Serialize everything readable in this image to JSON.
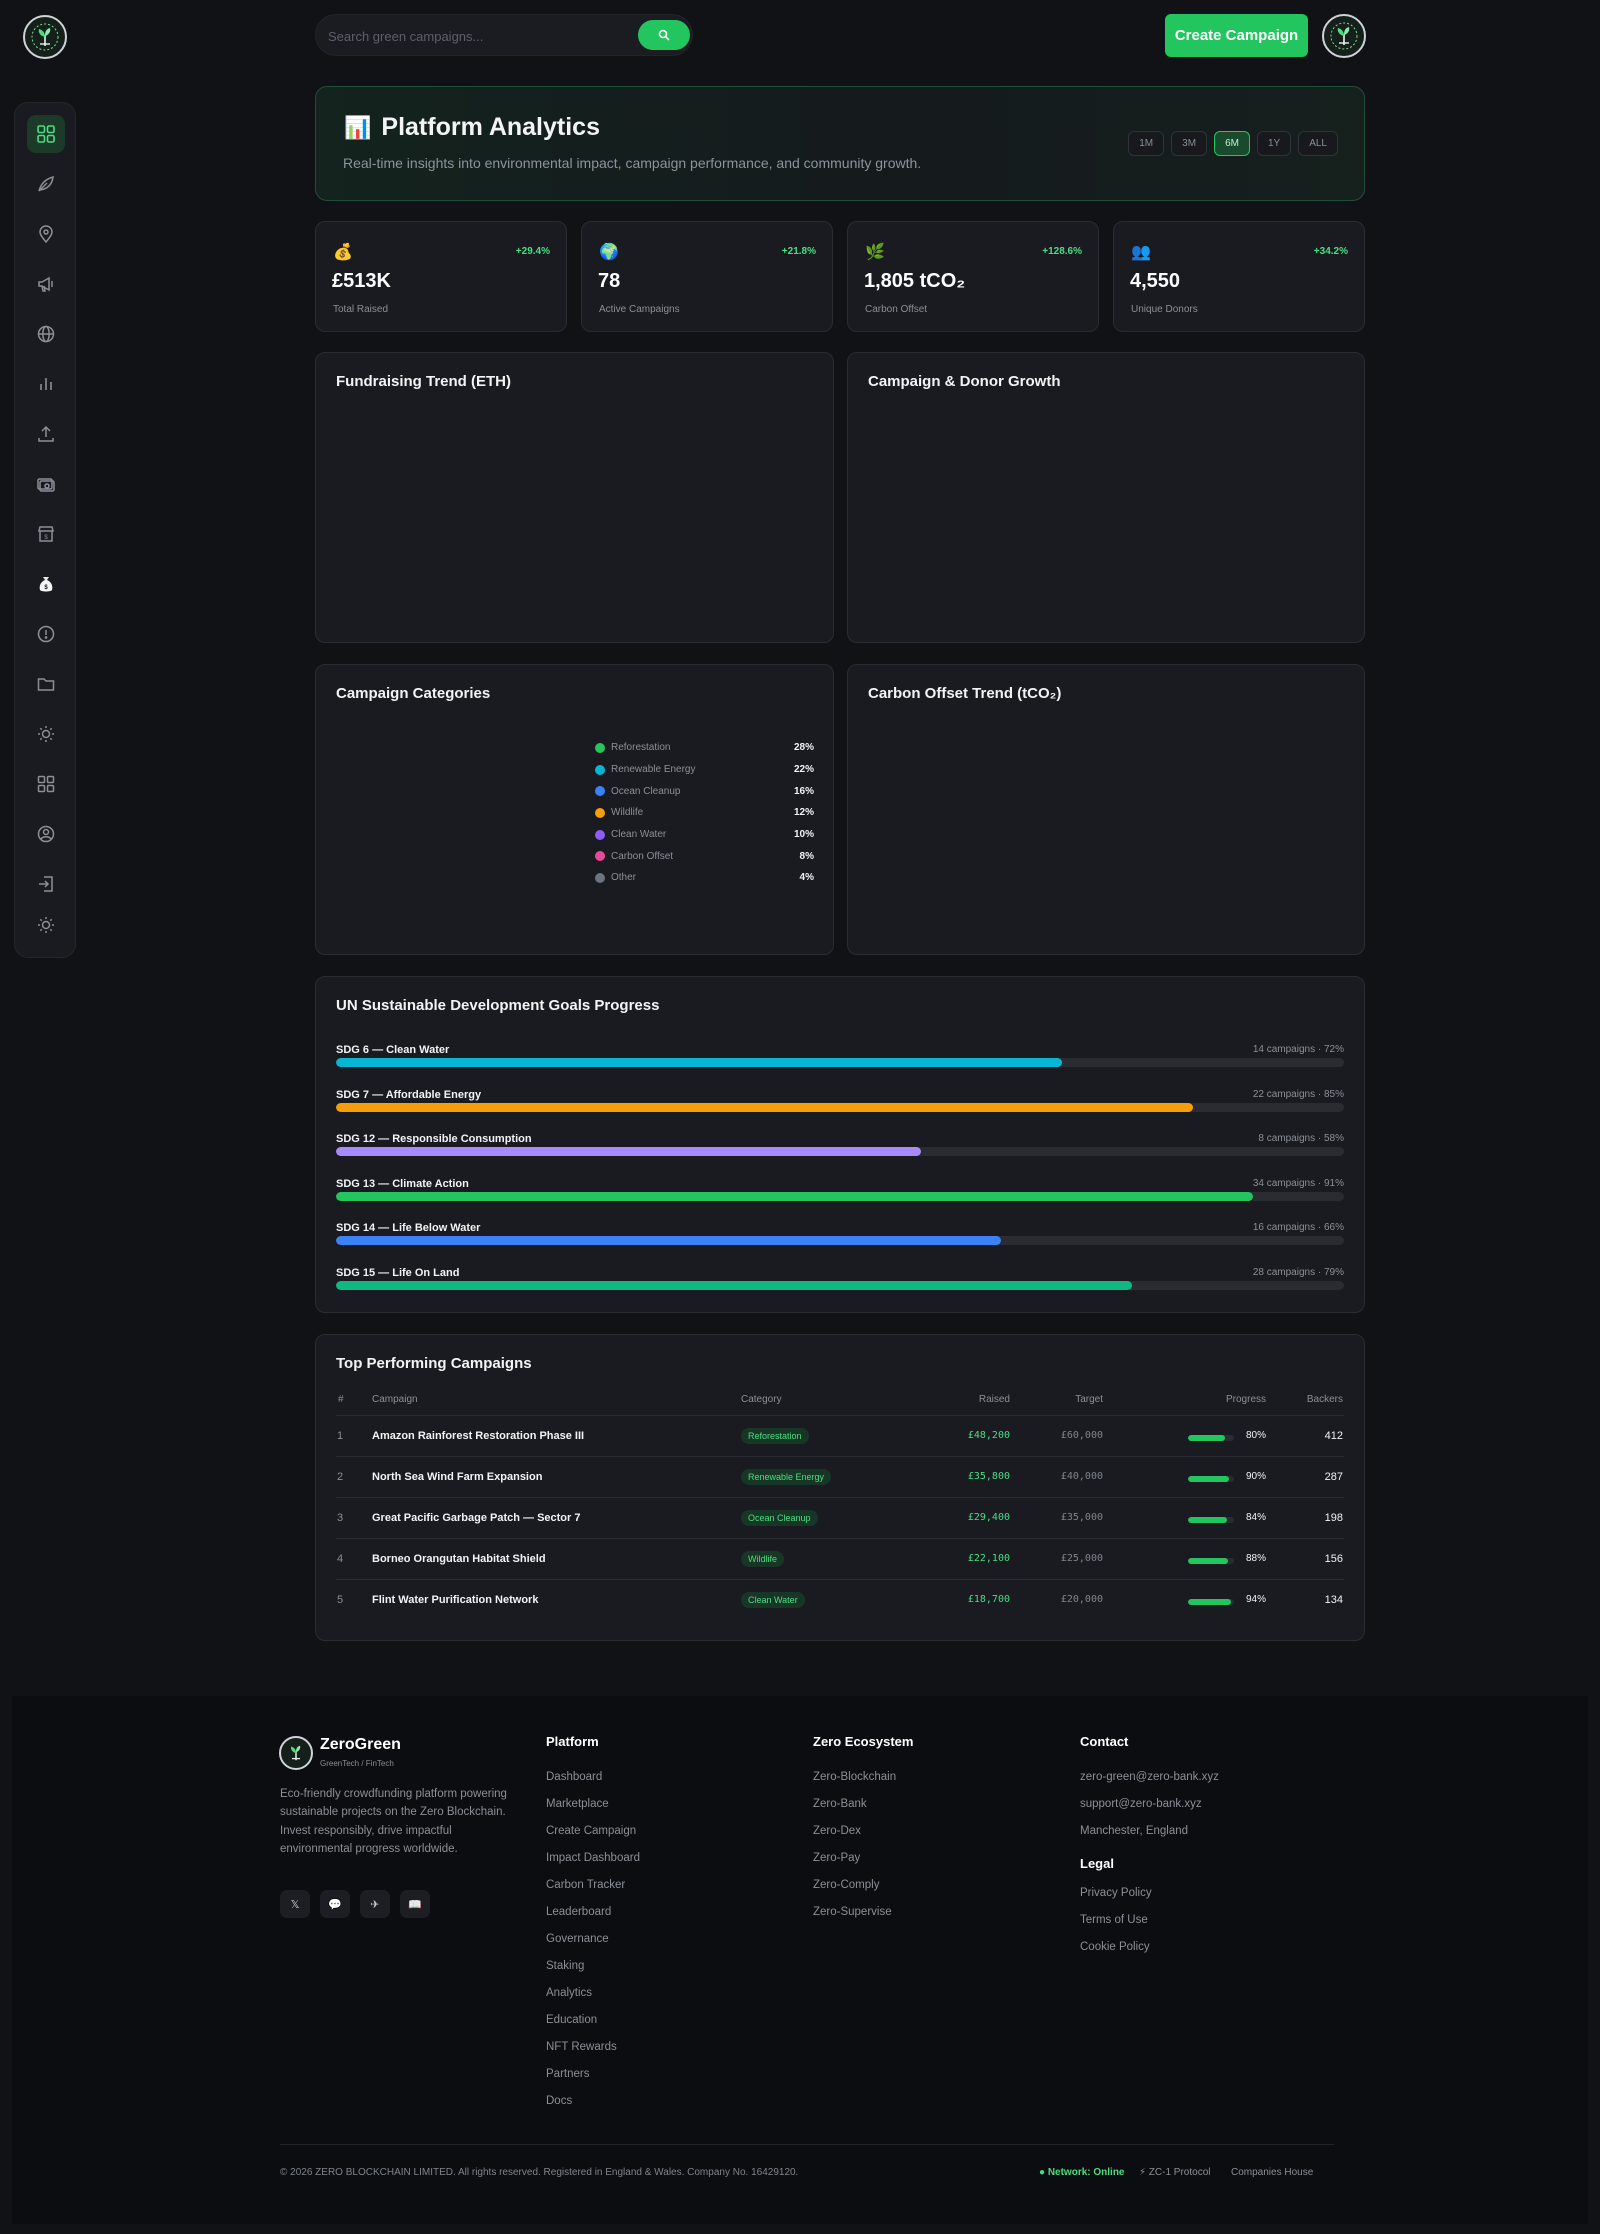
{
  "header": {
    "search_placeholder": "Search green campaigns...",
    "create_label": "Create Campaign"
  },
  "sidebar": {
    "icons": [
      "dashboard-icon",
      "leaf-icon",
      "location-pin-icon",
      "megaphone-icon",
      "globe-icon",
      "bar-chart-icon",
      "upload-icon",
      "money-icon",
      "store-icon",
      "money-bag-icon",
      "alert-icon",
      "folder-icon",
      "sun-icon",
      "grid-icon",
      "user-circle-icon",
      "login-icon",
      "theme-toggle-icon"
    ],
    "active_index": 0
  },
  "hero": {
    "emoji": "📊",
    "title": "Platform Analytics",
    "subtitle": "Real-time insights into environmental impact, campaign performance, and community growth.",
    "ranges": [
      "1M",
      "3M",
      "6M",
      "1Y",
      "ALL"
    ],
    "active_range": "6M"
  },
  "stats": [
    {
      "icon": "💰",
      "change": "+29.4%",
      "value": "£513K",
      "label": "Total Raised"
    },
    {
      "icon": "🌍",
      "change": "+21.8%",
      "value": "78",
      "label": "Active Campaigns"
    },
    {
      "icon": "🌿",
      "change": "+128.6%",
      "value": "1,805 tCO₂",
      "label": "Carbon Offset"
    },
    {
      "icon": "👥",
      "change": "+34.2%",
      "value": "4,550",
      "label": "Unique Donors"
    }
  ],
  "panels": {
    "fundraising": "Fundraising Trend (ETH)",
    "growth": "Campaign & Donor Growth",
    "categories": "Campaign Categories",
    "carbon": "Carbon Offset Trend (tCO₂)"
  },
  "chart_data": {
    "type": "pie",
    "title": "Campaign Categories",
    "categories": [
      "Reforestation",
      "Renewable Energy",
      "Ocean Cleanup",
      "Wildlife",
      "Clean Water",
      "Carbon Offset",
      "Other"
    ],
    "values": [
      28,
      22,
      16,
      12,
      10,
      8,
      4
    ],
    "labels": [
      "28%",
      "22%",
      "16%",
      "12%",
      "10%",
      "8%",
      "4%"
    ],
    "colors": [
      "#22c55e",
      "#06b6d4",
      "#3b82f6",
      "#f59e0b",
      "#8b5cf6",
      "#ec4899",
      "#6b7280"
    ],
    "legend": "right"
  },
  "sdg": {
    "title": "UN Sustainable Development Goals Progress",
    "items": [
      {
        "name": "SDG 6 — Clean Water",
        "meta": "14 campaigns · 72%",
        "progress": 72,
        "color": "#06b6d4"
      },
      {
        "name": "SDG 7 — Affordable Energy",
        "meta": "22 campaigns · 85%",
        "progress": 85,
        "color": "#f59e0b"
      },
      {
        "name": "SDG 12 — Responsible Consumption",
        "meta": "8 campaigns · 58%",
        "progress": 58,
        "color": "#a78bfa"
      },
      {
        "name": "SDG 13 — Climate Action",
        "meta": "34 campaigns · 91%",
        "progress": 91,
        "color": "#22c55e"
      },
      {
        "name": "SDG 14 — Life Below Water",
        "meta": "16 campaigns · 66%",
        "progress": 66,
        "color": "#3b82f6"
      },
      {
        "name": "SDG 15 — Life On Land",
        "meta": "28 campaigns · 79%",
        "progress": 79,
        "color": "#10b981"
      }
    ]
  },
  "top": {
    "title": "Top Performing Campaigns",
    "columns": {
      "idx": "#",
      "campaign": "Campaign",
      "category": "Category",
      "raised": "Raised",
      "target": "Target",
      "progress": "Progress",
      "backers": "Backers"
    },
    "rows": [
      {
        "idx": "1",
        "name": "Amazon Rainforest Restoration Phase III",
        "category": "Reforestation",
        "raised": "£48,200",
        "target": "£60,000",
        "progress": 80,
        "pct": "80%",
        "backers": "412"
      },
      {
        "idx": "2",
        "name": "North Sea Wind Farm Expansion",
        "category": "Renewable Energy",
        "raised": "£35,800",
        "target": "£40,000",
        "progress": 90,
        "pct": "90%",
        "backers": "287"
      },
      {
        "idx": "3",
        "name": "Great Pacific Garbage Patch — Sector 7",
        "category": "Ocean Cleanup",
        "raised": "£29,400",
        "target": "£35,000",
        "progress": 84,
        "pct": "84%",
        "backers": "198"
      },
      {
        "idx": "4",
        "name": "Borneo Orangutan Habitat Shield",
        "category": "Wildlife",
        "raised": "£22,100",
        "target": "£25,000",
        "progress": 88,
        "pct": "88%",
        "backers": "156"
      },
      {
        "idx": "5",
        "name": "Flint Water Purification Network",
        "category": "Clean Water",
        "raised": "£18,700",
        "target": "£20,000",
        "progress": 94,
        "pct": "94%",
        "backers": "134"
      }
    ]
  },
  "footer": {
    "brand": "ZeroGreen",
    "tagline": "GreenTech / FinTech",
    "description": "Eco-friendly crowdfunding platform powering sustainable projects on the Zero Blockchain. Invest responsibly, drive impactful environmental progress worldwide.",
    "socials": [
      "𝕏",
      "💬",
      "✈",
      "📖"
    ],
    "platform_title": "Platform",
    "platform_links": [
      "Dashboard",
      "Marketplace",
      "Create Campaign",
      "Impact Dashboard",
      "Carbon Tracker",
      "Leaderboard",
      "Governance",
      "Staking",
      "Analytics",
      "Education",
      "NFT Rewards",
      "Partners",
      "Docs"
    ],
    "ecosystem_title": "Zero Ecosystem",
    "ecosystem_links": [
      "Zero-Blockchain",
      "Zero-Bank",
      "Zero-Dex",
      "Zero-Pay",
      "Zero-Comply",
      "Zero-Supervise"
    ],
    "contact_title": "Contact",
    "contact_lines": [
      "zero-green@zero-bank.xyz",
      "support@zero-bank.xyz",
      "Manchester, England"
    ],
    "legal_title": "Legal",
    "legal_links": [
      "Privacy Policy",
      "Terms of Use",
      "Cookie Policy"
    ],
    "copyright": "© 2026 ZERO BLOCKCHAIN LIMITED. All rights reserved. Registered in England & Wales. Company No. 16429120.",
    "network_status": "● Network: Online",
    "protocol": "⚡ ZC-1 Protocol",
    "companies_house": "Companies House"
  }
}
